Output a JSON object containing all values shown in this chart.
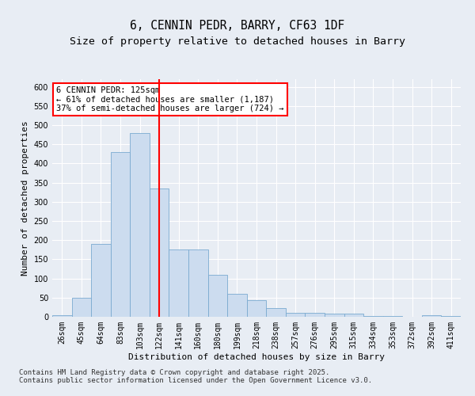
{
  "title1": "6, CENNIN PEDR, BARRY, CF63 1DF",
  "title2": "Size of property relative to detached houses in Barry",
  "xlabel": "Distribution of detached houses by size in Barry",
  "ylabel": "Number of detached properties",
  "categories": [
    "26sqm",
    "45sqm",
    "64sqm",
    "83sqm",
    "103sqm",
    "122sqm",
    "141sqm",
    "160sqm",
    "180sqm",
    "199sqm",
    "218sqm",
    "238sqm",
    "257sqm",
    "276sqm",
    "295sqm",
    "315sqm",
    "334sqm",
    "353sqm",
    "372sqm",
    "392sqm",
    "411sqm"
  ],
  "values": [
    5,
    50,
    190,
    430,
    480,
    335,
    175,
    175,
    110,
    60,
    43,
    22,
    10,
    10,
    8,
    8,
    3,
    2,
    1,
    4,
    2
  ],
  "bar_color": "#ccdcef",
  "bar_edge_color": "#7aaad0",
  "vline_x": 5,
  "vline_color": "red",
  "annotation_text": "6 CENNIN PEDR: 125sqm\n← 61% of detached houses are smaller (1,187)\n37% of semi-detached houses are larger (724) →",
  "annotation_box_color": "white",
  "annotation_box_edge": "red",
  "ylim": [
    0,
    620
  ],
  "yticks": [
    0,
    50,
    100,
    150,
    200,
    250,
    300,
    350,
    400,
    450,
    500,
    550,
    600
  ],
  "background_color": "#e8edf4",
  "plot_background": "#e8edf4",
  "grid_color": "white",
  "footnote": "Contains HM Land Registry data © Crown copyright and database right 2025.\nContains public sector information licensed under the Open Government Licence v3.0.",
  "title_fontsize": 10.5,
  "subtitle_fontsize": 9.5,
  "label_fontsize": 8,
  "tick_fontsize": 7,
  "annot_fontsize": 7.5,
  "footnote_fontsize": 6.5
}
